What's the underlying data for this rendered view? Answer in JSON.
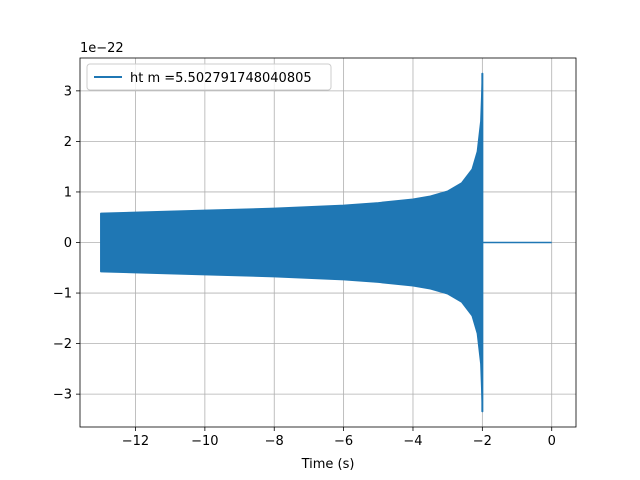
{
  "chart_data": {
    "type": "line",
    "title": "",
    "xlabel": "Time (s)",
    "ylabel": "",
    "offset_text": "1e−22",
    "xlim": [
      -13.6,
      0.7
    ],
    "ylim": [
      -3.65,
      3.65
    ],
    "grid": true,
    "legend_position": "top-left",
    "xticks": [
      -12,
      -10,
      -8,
      -6,
      -4,
      -2,
      0
    ],
    "xtick_labels": [
      "−12",
      "−10",
      "−8",
      "−6",
      "−4",
      "−2",
      "0"
    ],
    "yticks": [
      -3,
      -2,
      -1,
      0,
      1,
      2,
      3
    ],
    "ytick_labels": [
      "−3",
      "−2",
      "−1",
      "0",
      "1",
      "2",
      "3"
    ],
    "series": [
      {
        "name": "ht m =5.502791748040805",
        "color": "#1f77b4",
        "envelope": {
          "t": [
            -13.0,
            -12.0,
            -10.0,
            -8.0,
            -6.0,
            -5.0,
            -4.0,
            -3.5,
            -3.0,
            -2.6,
            -2.3,
            -2.15,
            -2.05,
            -2.0
          ],
          "amp": [
            0.58,
            0.6,
            0.64,
            0.68,
            0.74,
            0.79,
            0.86,
            0.92,
            1.02,
            1.18,
            1.45,
            1.8,
            2.4,
            3.35
          ]
        },
        "post_merger": {
          "t_start": -1.98,
          "t_end": 0.0,
          "value": 0.0
        }
      }
    ]
  }
}
